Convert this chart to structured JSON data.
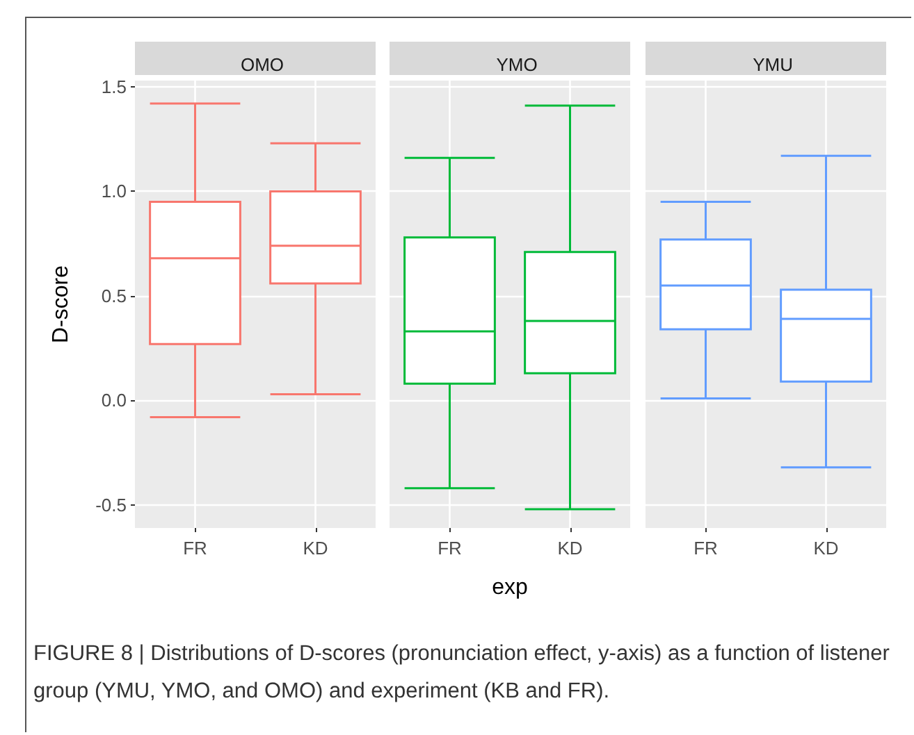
{
  "chart_data": [
    {
      "type": "box",
      "title": "OMO",
      "categories": [
        "FR",
        "KD"
      ],
      "color": "#f8766d",
      "ylabel": "D-score",
      "ylim": [
        -0.61,
        1.53
      ],
      "yticks": [
        {
          "value": -0.5,
          "label": "-0.5"
        },
        {
          "value": 0,
          "label": "0.0"
        },
        {
          "value": 0.5,
          "label": "0.5"
        },
        {
          "value": 1,
          "label": "1.0"
        },
        {
          "value": 1.5,
          "label": "1.5"
        }
      ],
      "grid": true,
      "boxes": [
        {
          "low": -0.08,
          "q1": 0.27,
          "median": 0.68,
          "q3": 0.95,
          "high": 1.42
        },
        {
          "low": 0.03,
          "q1": 0.56,
          "median": 0.74,
          "q3": 1.0,
          "high": 1.23
        }
      ],
      "annotations": [
        "FIGURE 8 | Distributions of D-scores (pronunciation effect, y-axis) as a function of listener group (YMU, YMO, and OMO) and experiment (KB and FR)."
      ]
    },
    {
      "type": "box",
      "title": "YMO",
      "categories": [
        "FR",
        "KD"
      ],
      "color": "#00ba38",
      "xlabel": "exp",
      "ylim": [
        -0.61,
        1.53
      ],
      "yticks": [
        -0.5,
        0,
        0.5,
        1,
        1.5
      ],
      "grid": true,
      "tick_labels": "x",
      "boxes": [
        {
          "low": -0.42,
          "q1": 0.08,
          "median": 0.33,
          "q3": 0.78,
          "high": 1.16
        },
        {
          "low": -0.52,
          "q1": 0.13,
          "median": 0.38,
          "q3": 0.71,
          "high": 1.41
        }
      ]
    },
    {
      "type": "box",
      "title": "YMU",
      "categories": [
        "FR",
        "KD"
      ],
      "color": "#619cff",
      "ylim": [
        -0.61,
        1.53
      ],
      "yticks": [
        -0.5,
        0,
        0.5,
        1,
        1.5
      ],
      "grid": true,
      "tick_labels": "x",
      "boxes": [
        {
          "low": 0.01,
          "q1": 0.34,
          "median": 0.55,
          "q3": 0.77,
          "high": 0.95
        },
        {
          "low": -0.32,
          "q1": 0.09,
          "median": 0.39,
          "q3": 0.53,
          "high": 1.17
        }
      ]
    }
  ]
}
